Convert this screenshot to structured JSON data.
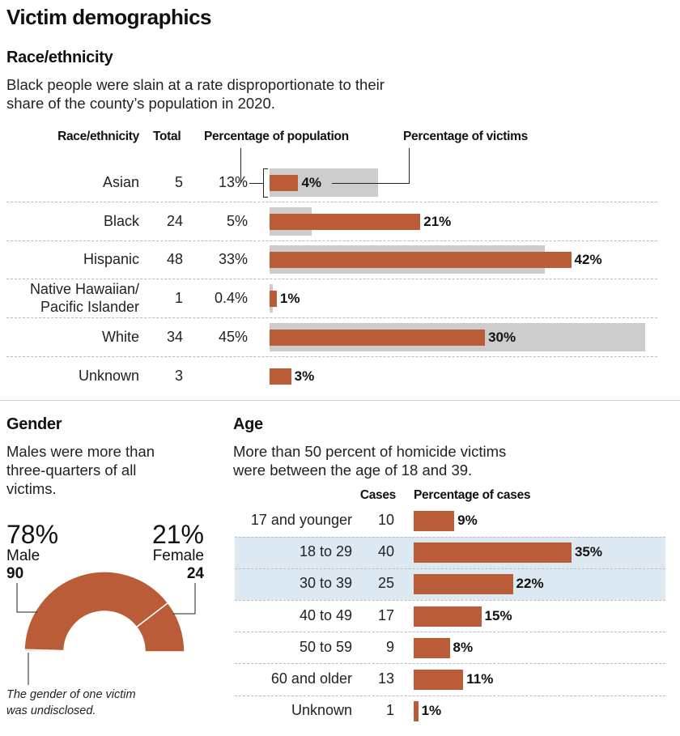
{
  "title": "Victim demographics",
  "race": {
    "heading": "Race/ethnicity",
    "dek_lines": [
      "Black people were slain at a rate disproportionate to their",
      "share of the county’s population in 2020."
    ],
    "columns": [
      "Race/ethnicity",
      "Total",
      "Percentage of population",
      "Percentage of victims"
    ]
  },
  "gender": {
    "heading": "Gender",
    "dek_lines": [
      "Males were more than",
      "three-quarters of all",
      "victims."
    ],
    "male": {
      "pct": "78%",
      "label": "Male",
      "count": "90"
    },
    "female": {
      "pct": "21%",
      "label": "Female",
      "count": "24"
    },
    "note_lines": [
      "The gender of one victim",
      "was undisclosed."
    ]
  },
  "age": {
    "heading": "Age",
    "dek_lines": [
      "More than 50 percent of homicide victims",
      "were between the age of 18 and 39."
    ],
    "columns": [
      "Cases",
      "Percentage of cases"
    ]
  },
  "colors": {
    "victims": "#b95c37",
    "population": "#cccccc",
    "highlight": "#dce9f2"
  },
  "chart_data": [
    {
      "type": "bar",
      "orientation": "horizontal",
      "categories": [
        "Asian",
        "Black",
        "Hispanic",
        "Native Hawaiian/ Pacific Islander",
        "White",
        "Unknown"
      ],
      "category_lines": [
        [
          "Asian"
        ],
        [
          "Black"
        ],
        [
          "Hispanic"
        ],
        [
          "Native Hawaiian/",
          "Pacific Islander"
        ],
        [
          "White"
        ],
        [
          "Unknown"
        ]
      ],
      "totals": [
        "5",
        "24",
        "48",
        "1",
        "34",
        "3"
      ],
      "series": [
        {
          "name": "Percentage of population",
          "values": [
            13,
            5,
            33,
            0.4,
            45,
            null
          ],
          "labels": [
            "13%",
            "5%",
            "33%",
            "0.4%",
            "45%",
            ""
          ]
        },
        {
          "name": "Percentage of victims",
          "values": [
            4,
            21,
            42,
            1,
            30,
            3
          ],
          "labels": [
            "4%",
            "21%",
            "42%",
            "1%",
            "30%",
            "3%"
          ]
        }
      ]
    },
    {
      "type": "pie",
      "shape": "half-donut",
      "slices": [
        {
          "name": "Undisclosed",
          "count": 1
        },
        {
          "name": "Male",
          "count": 90,
          "pct": 78
        },
        {
          "name": "Female",
          "count": 24,
          "pct": 21
        }
      ]
    },
    {
      "type": "bar",
      "orientation": "horizontal",
      "categories": [
        "17 and younger",
        "18 to 29",
        "30 to 39",
        "40 to 49",
        "50 to 59",
        "60 and older",
        "Unknown"
      ],
      "cases": [
        "10",
        "40",
        "25",
        "17",
        "9",
        "13",
        "1"
      ],
      "values": [
        9,
        35,
        22,
        15,
        8,
        11,
        1
      ],
      "labels": [
        "9%",
        "35%",
        "22%",
        "15%",
        "8%",
        "11%",
        "1%"
      ],
      "highlighted": [
        "18 to 29",
        "30 to 39"
      ]
    }
  ]
}
